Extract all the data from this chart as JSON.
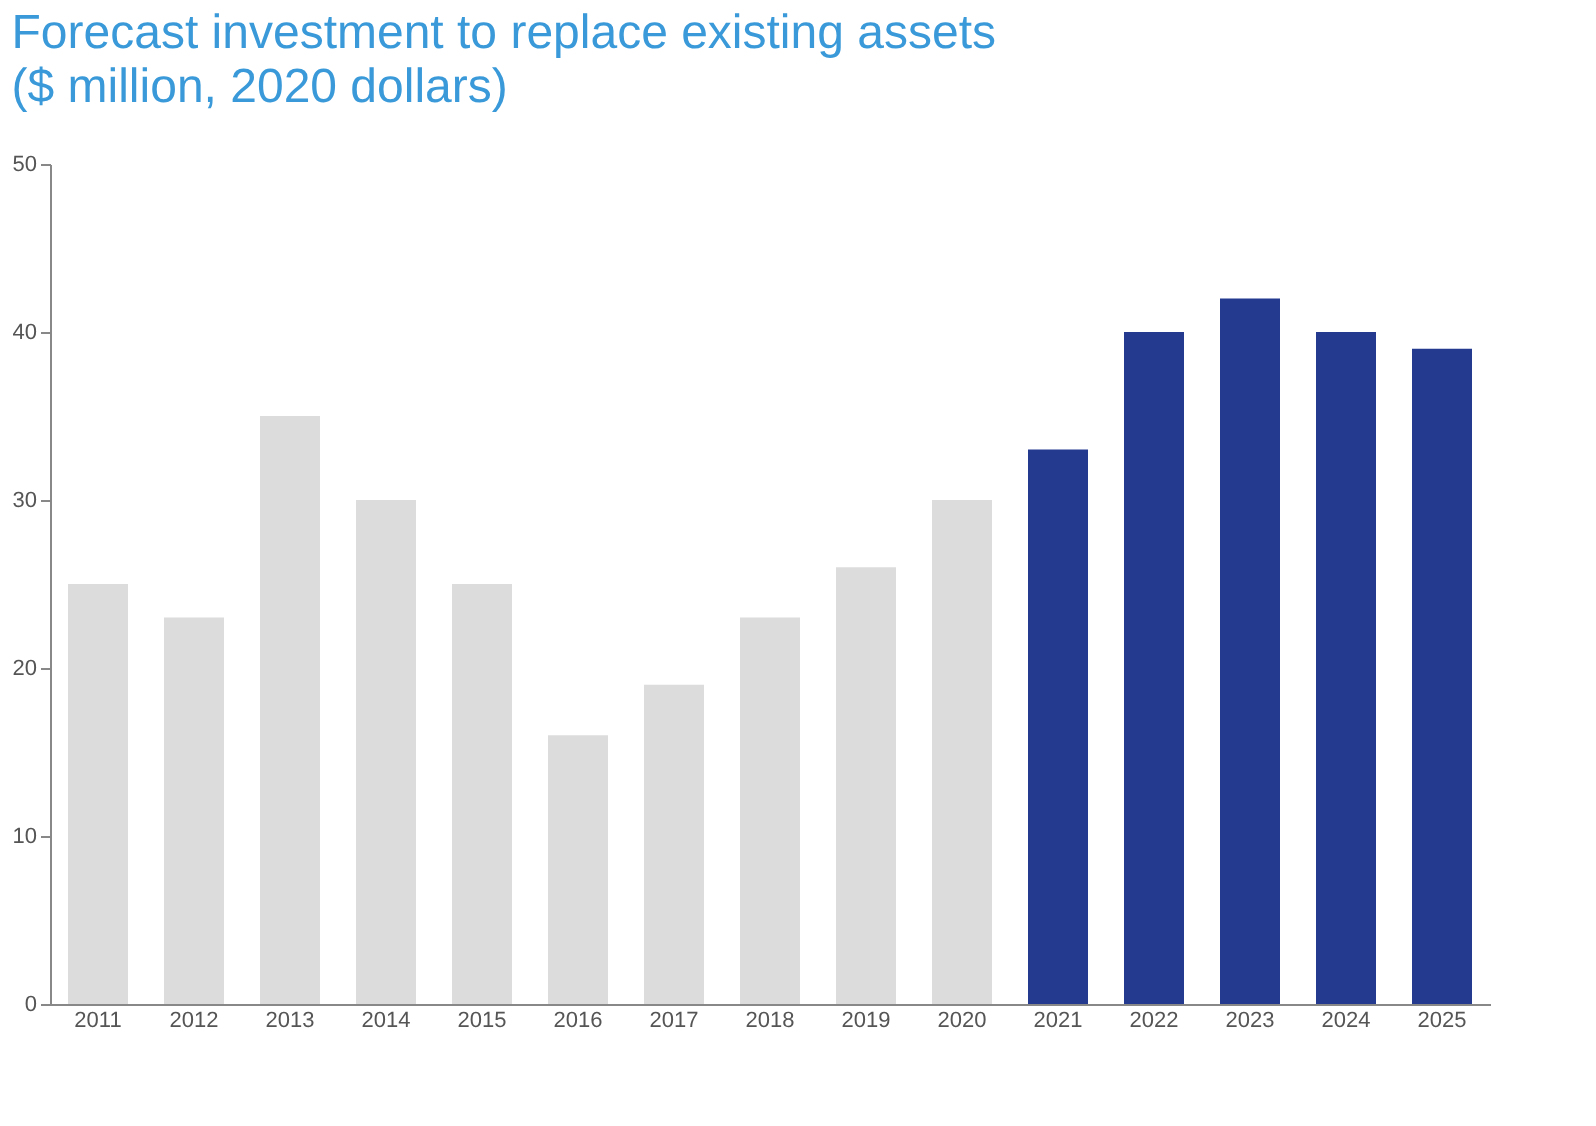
{
  "chart_data": {
    "type": "bar",
    "title": "Forecast investment to replace existing assets",
    "subtitle": "($ million, 2020 dollars)",
    "categories": [
      "2011",
      "2012",
      "2013",
      "2014",
      "2015",
      "2016",
      "2017",
      "2018",
      "2019",
      "2020",
      "2021",
      "2022",
      "2023",
      "2024",
      "2025"
    ],
    "values": [
      25,
      23,
      35,
      30,
      25,
      16,
      19,
      23,
      26,
      30,
      33,
      40,
      42,
      40,
      39
    ],
    "colors": [
      "#dcdcdc",
      "#dcdcdc",
      "#dcdcdc",
      "#dcdcdc",
      "#dcdcdc",
      "#dcdcdc",
      "#dcdcdc",
      "#dcdcdc",
      "#dcdcdc",
      "#dcdcdc",
      "#233a8f",
      "#233a8f",
      "#233a8f",
      "#233a8f",
      "#233a8f"
    ],
    "ylim": [
      0,
      50
    ],
    "yticks": [
      0,
      10,
      20,
      30,
      40,
      50
    ],
    "grid": false
  }
}
